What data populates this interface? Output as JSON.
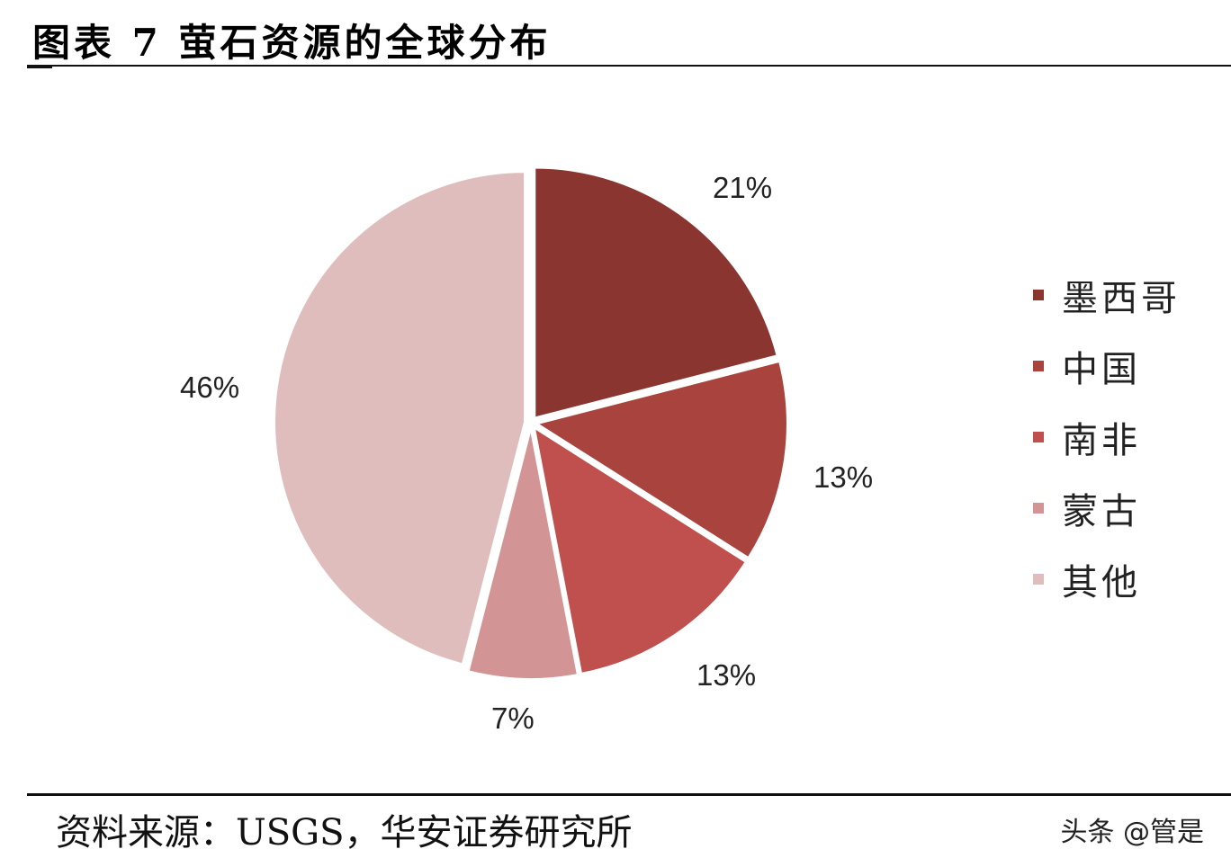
{
  "header": {
    "title": "图表 7 萤石资源的全球分布"
  },
  "footer": {
    "source": "资料来源：USGS，华安证券研究所",
    "watermark": "头条 @管是"
  },
  "legend": {
    "items": [
      {
        "label": "墨西哥",
        "color": "#8B3530"
      },
      {
        "label": "中国",
        "color": "#A8443D"
      },
      {
        "label": "南非",
        "color": "#C0504D"
      },
      {
        "label": "蒙古",
        "color": "#D29495"
      },
      {
        "label": "其他",
        "color": "#E0BDBD"
      }
    ]
  },
  "labels": {
    "mexico": "21%",
    "china": "13%",
    "south_africa": "13%",
    "mongolia": "7%",
    "others": "46%"
  },
  "chart_data": {
    "type": "pie",
    "title": "图表 7 萤石资源的全球分布",
    "categories": [
      "墨西哥",
      "中国",
      "南非",
      "蒙古",
      "其他"
    ],
    "values": [
      21,
      13,
      13,
      7,
      46
    ],
    "unit": "%",
    "colors": [
      "#8B3530",
      "#A8443D",
      "#C0504D",
      "#D29495",
      "#E0BDBD"
    ],
    "start_angle": "12 o'clock, clockwise",
    "legend_position": "right",
    "source": "资料来源：USGS，华安证券研究所"
  }
}
